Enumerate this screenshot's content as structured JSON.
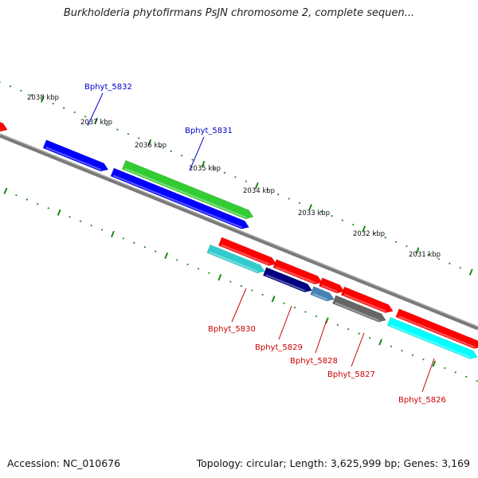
{
  "title": "Burkholderia phytofirmans PsJN chromosome 2, complete sequen...",
  "footer": {
    "accession": "Accession: NC_010676",
    "topology": "Topology: circular; Length: 3,625,999 bp; Genes: 3,169"
  },
  "scale_labels": [
    "2038 kbp",
    "2037 kbp",
    "2036 kbp",
    "2035 kbp",
    "2034 kbp",
    "2033 kbp",
    "2032 kbp",
    "2031 kbp"
  ],
  "gene_labels_top": [
    "Bphyt_5832",
    "Bphyt_5831"
  ],
  "gene_labels_bottom": [
    "Bphyt_5830",
    "Bphyt_5829",
    "Bphyt_5828",
    "Bphyt_5827",
    "Bphyt_5826"
  ],
  "colors": {
    "backbone": "#7a7a7a",
    "tick": "#1a8a1a",
    "label_top": "#0000cc",
    "label_bottom": "#cc0000",
    "red": "#ff0000",
    "blue": "#0000ff",
    "green": "#33cc33",
    "teal": "#33cccc",
    "navy": "#000080",
    "steel": "#4682b4",
    "gray": "#666666",
    "cyan": "#00ffff"
  }
}
